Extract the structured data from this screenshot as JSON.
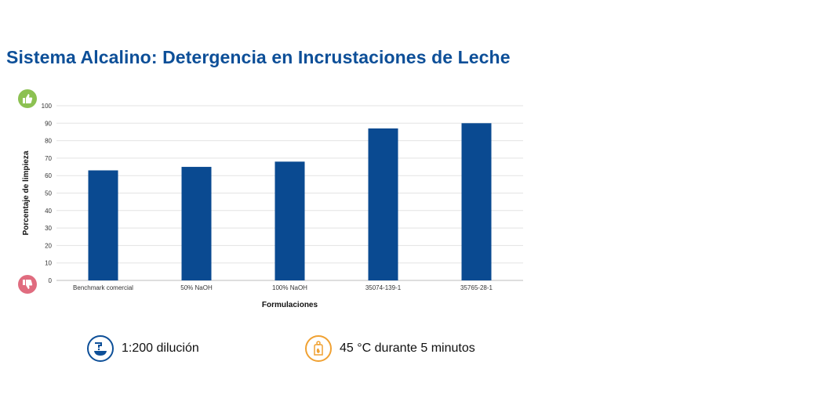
{
  "page": {
    "title": "Sistema Alcalino: Detergencia en Incrustaciones de Leche"
  },
  "chart_data": {
    "type": "bar",
    "categories": [
      "Benchmark comercial",
      "50% NaOH",
      "100% NaOH",
      "35074-139-1",
      "35765-28-1"
    ],
    "values": [
      63,
      65,
      68,
      87,
      90
    ],
    "title": "",
    "xlabel": "Formulaciones",
    "ylabel": "Porcentaje de limpieza",
    "ylim": [
      0,
      100
    ],
    "yticks": [
      0,
      10,
      20,
      30,
      40,
      50,
      60,
      70,
      80,
      90,
      100
    ],
    "grid": true,
    "bar_color": "#0a4a91"
  },
  "indicators": {
    "top_icon": "thumbs-up-icon",
    "top_color": "#8cc152",
    "bottom_icon": "thumbs-down-icon",
    "bottom_color": "#e06c7f"
  },
  "legend": {
    "dilution": {
      "icon": "dilution-bowl-icon",
      "color": "#0d4f98",
      "text": "1:200 dilución"
    },
    "temperature": {
      "icon": "temperature-time-icon",
      "color": "#f0a132",
      "text": "45 °C durante 5 minutos"
    }
  }
}
